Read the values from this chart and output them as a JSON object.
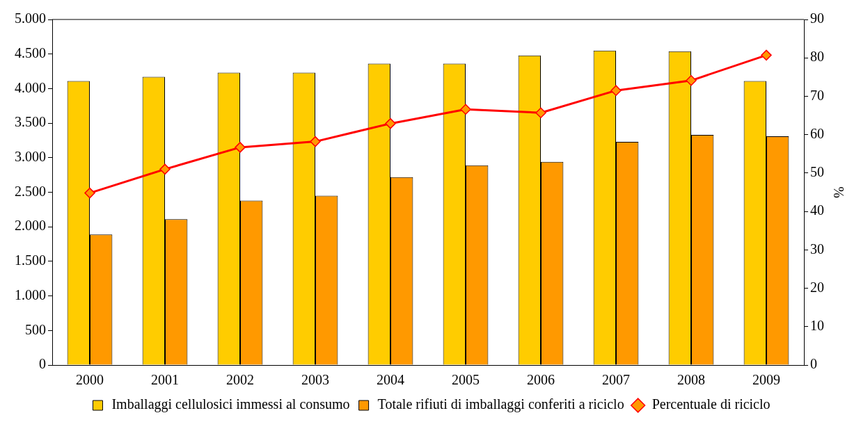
{
  "chart_data": {
    "type": "bar",
    "categories": [
      "2000",
      "2001",
      "2002",
      "2003",
      "2004",
      "2005",
      "2006",
      "2007",
      "2008",
      "2009"
    ],
    "series": [
      {
        "name": "Imballaggi cellulosici immessi al consumo",
        "color": "#ffcc00",
        "values": [
          4110,
          4170,
          4230,
          4230,
          4360,
          4360,
          4480,
          4550,
          4540,
          4110
        ]
      },
      {
        "name": "Totale rifiuti di imballaggi conferiti a riciclo",
        "color": "#ff9900",
        "values": [
          1890,
          2110,
          2380,
          2450,
          2720,
          2890,
          2940,
          3230,
          3330,
          3310
        ]
      },
      {
        "name": "Percentuale di riciclo",
        "type": "line",
        "axis": "y2",
        "color": "#ff0000",
        "marker": "diamond",
        "values": [
          44.8,
          51.0,
          56.7,
          58.2,
          62.9,
          66.6,
          65.7,
          71.5,
          74.1,
          80.7
        ]
      }
    ],
    "ylim": [
      0,
      5000
    ],
    "yticks": [
      {
        "value": 0,
        "label": "0"
      },
      {
        "value": 500,
        "label": "500"
      },
      {
        "value": 1000,
        "label": "1.000"
      },
      {
        "value": 1500,
        "label": "1.500"
      },
      {
        "value": 2000,
        "label": "2.000"
      },
      {
        "value": 2500,
        "label": "2.500"
      },
      {
        "value": 3000,
        "label": "3.000"
      },
      {
        "value": 3500,
        "label": "3.500"
      },
      {
        "value": 4000,
        "label": "4.000"
      },
      {
        "value": 4500,
        "label": "4.500"
      },
      {
        "value": 5000,
        "label": "5.000"
      }
    ],
    "y2lim": [
      0,
      90
    ],
    "y2ticks": [
      0,
      10,
      20,
      30,
      40,
      50,
      60,
      70,
      80,
      90
    ],
    "y2label": "%",
    "grid": false,
    "legend": "bottom"
  }
}
